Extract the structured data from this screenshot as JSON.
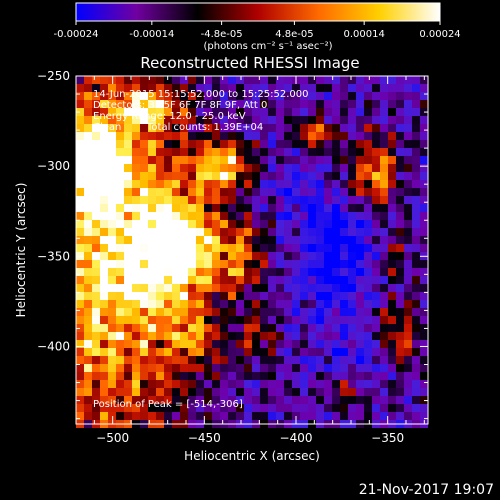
{
  "colorbar": {
    "tick_labels": [
      "-0.00024",
      "-0.00014",
      "-4.8e-05",
      "4.8e-05",
      "0.00014",
      "0.00024"
    ],
    "tick_values": [
      -0.00024,
      -0.00014,
      -4.8e-05,
      4.8e-05,
      0.00014,
      0.00024
    ],
    "range": [
      -0.00024,
      0.00024
    ],
    "units": "(photons cm⁻² s⁻¹ asec⁻²)",
    "colors": [
      "#0000ff",
      "#7000a0",
      "#000000",
      "#b00000",
      "#ff6a00",
      "#ffd000",
      "#ffffff"
    ]
  },
  "chart_data": {
    "type": "heatmap",
    "title": "Reconstructed RHESSI Image",
    "xlabel": "Heliocentric X (arcsec)",
    "ylabel": "Heliocentric Y (arcsec)",
    "xlim": [
      -520,
      -328
    ],
    "ylim": [
      -443,
      -250
    ],
    "x_ticks": [
      -500,
      -450,
      -400,
      -350
    ],
    "y_ticks": [
      -250,
      -300,
      -350,
      -400
    ],
    "x_tick_labels": [
      "−500",
      "−450",
      "−400",
      "−350"
    ],
    "y_tick_labels": [
      "−250",
      "−300",
      "−350",
      "−400"
    ],
    "annotations": {
      "time_range": "14-Jun-2015 15:15:52.000 to 15:25:52.000",
      "detectors": "Detectors: 3F 5F 6F 7F 8F 9F, Att 0",
      "energy_range": "Energy Range: 12.0 - 25.0 keV",
      "method": "Clean",
      "total_counts": "Total counts: 1.39E+04",
      "peak_position": "Position of Peak = [-514,-306]"
    },
    "peak": [
      -514,
      -306
    ]
  },
  "footer": {
    "timestamp": "21-Nov-2017 19:07"
  }
}
